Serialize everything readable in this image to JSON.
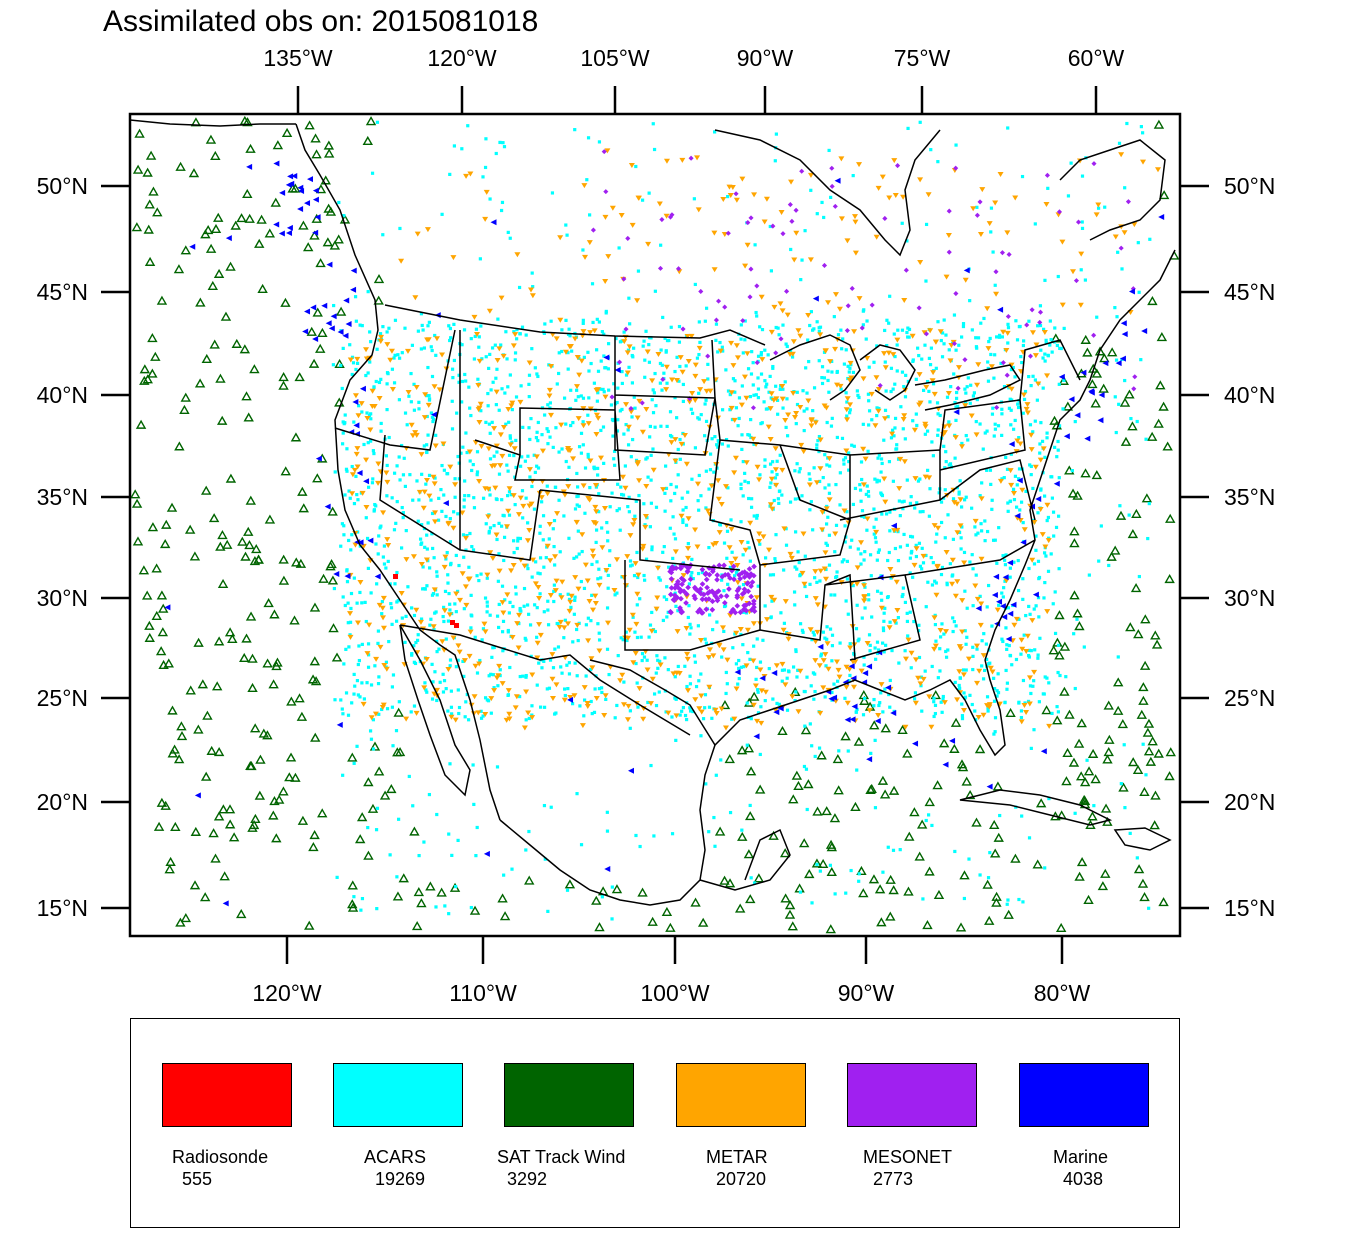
{
  "title": "Assimilated obs on: 2015081018",
  "axes": {
    "top_lon_labels": [
      "135°W",
      "120°W",
      "105°W",
      "90°W",
      "75°W",
      "60°W"
    ],
    "bottom_lon_labels": [
      "120°W",
      "110°W",
      "100°W",
      "90°W",
      "80°W"
    ],
    "lat_labels": [
      "50°N",
      "45°N",
      "40°N",
      "35°N",
      "30°N",
      "25°N",
      "20°N",
      "15°N"
    ]
  },
  "legend": [
    {
      "name": "Radiosonde",
      "count": "555",
      "color": "#ff0000"
    },
    {
      "name": "ACARS",
      "count": "19269",
      "color": "#00ffff"
    },
    {
      "name": "SAT Track Wind",
      "count": "3292",
      "color": "#006400"
    },
    {
      "name": "METAR",
      "count": "20720",
      "color": "#ffa500"
    },
    {
      "name": "MESONET",
      "count": "2773",
      "color": "#a020f0"
    },
    {
      "name": "Marine",
      "count": "4038",
      "color": "#0000ff"
    }
  ]
}
